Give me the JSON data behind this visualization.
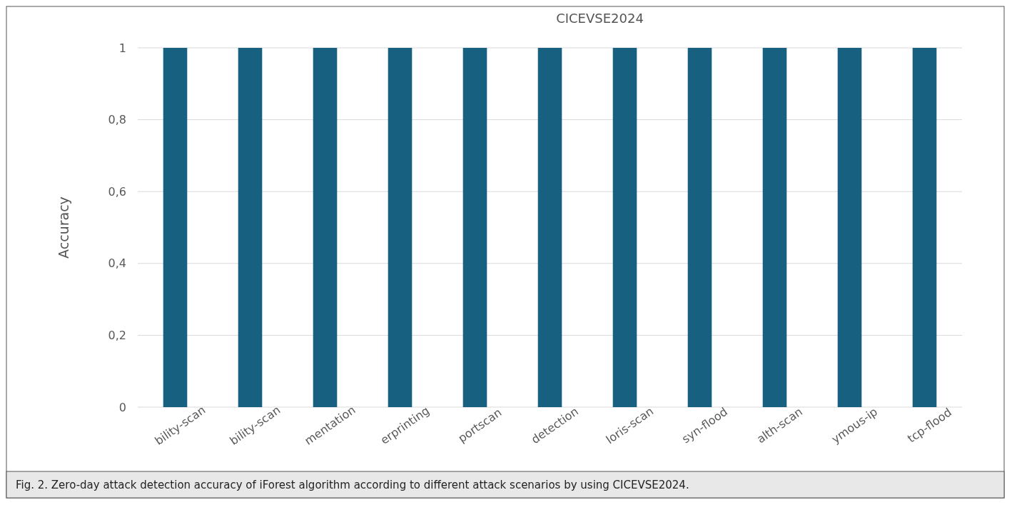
{
  "chart_data": {
    "type": "bar",
    "title": "CICEVSE2024",
    "ylabel": "Accuracy",
    "categories": [
      "bility-scan",
      "bility-scan",
      "mentation",
      "erprinting",
      "portscan",
      "detection",
      "loris-scan",
      "syn-flood",
      "alth-scan",
      "ymous-ip",
      "tcp-flood"
    ],
    "values": [
      1,
      1,
      1,
      1,
      1,
      1,
      1,
      1,
      1,
      1,
      1
    ],
    "color": "#17607f",
    "ylim": [
      0,
      1
    ],
    "yticks": [
      0,
      {
        "value": 0.2,
        "label": "0,2"
      },
      {
        "value": 0.4,
        "label": "0,4"
      },
      {
        "value": 0.6,
        "label": "0,6"
      },
      {
        "value": 0.8,
        "label": "0,8"
      },
      1
    ],
    "grid": "y",
    "annotations": [
      "Fig. 2.  Zero-day attack detection accuracy of iForest algorithm according to different attack scenarios by using CICEVSE2024."
    ]
  }
}
